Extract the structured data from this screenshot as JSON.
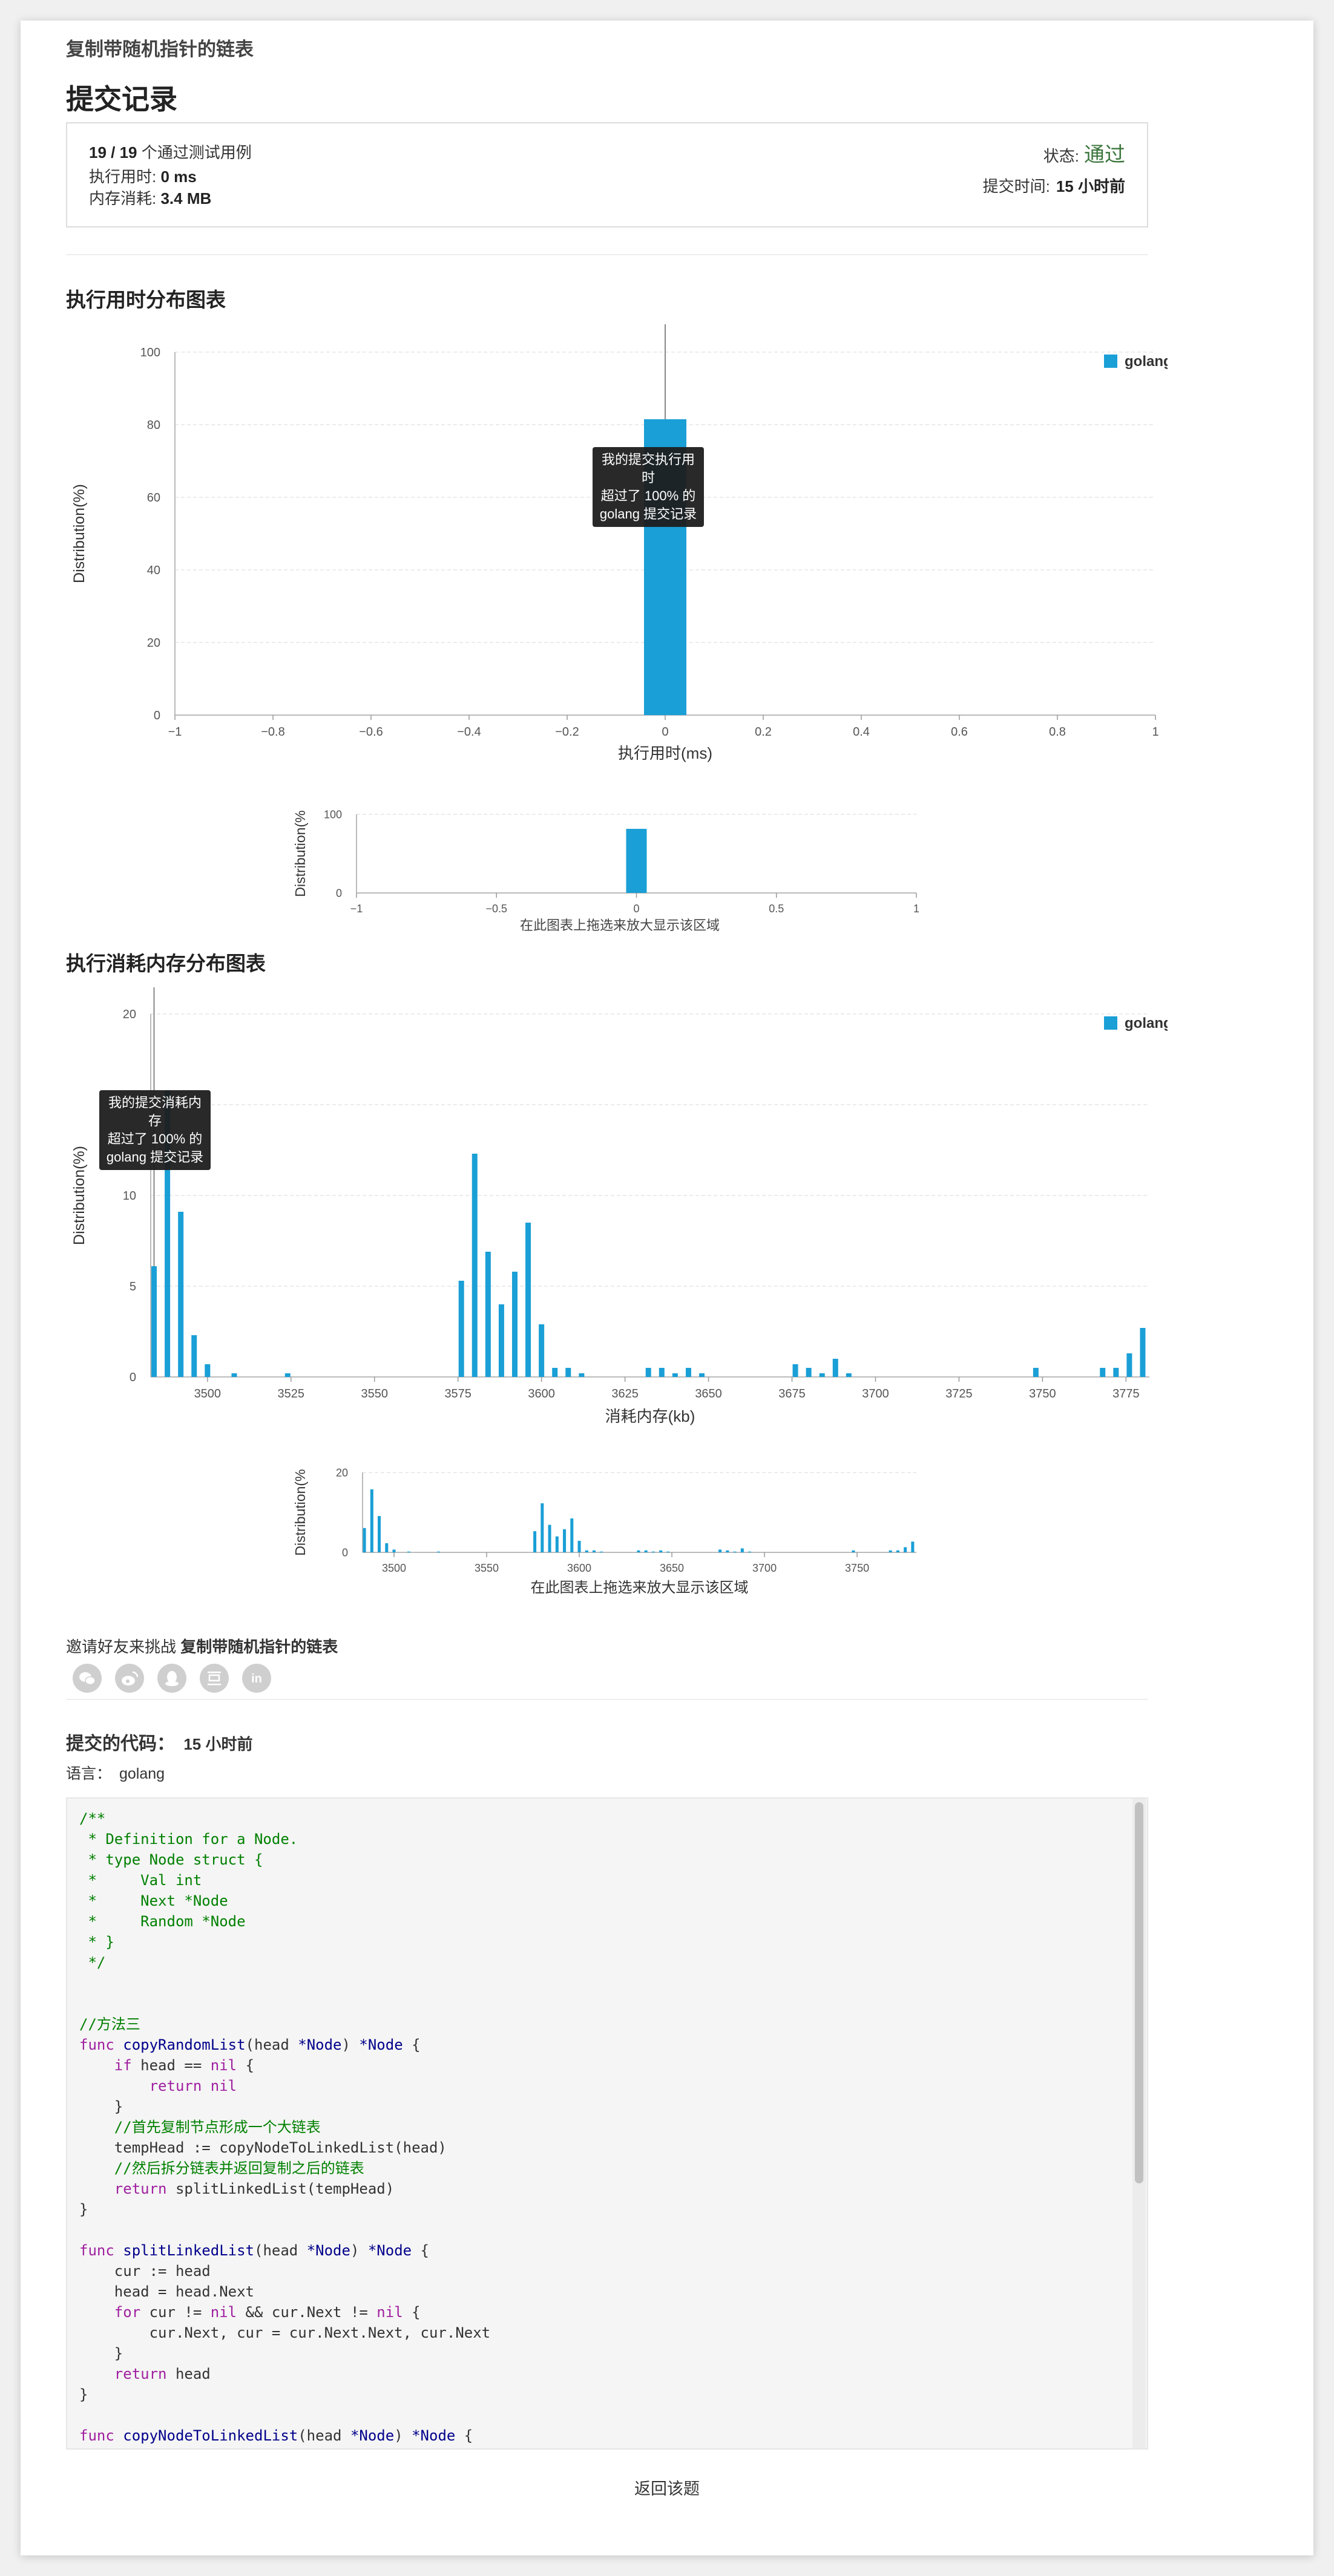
{
  "problem_title": "复制带随机指针的链表",
  "page_title": "提交记录",
  "summary": {
    "passed": "19 / 19",
    "passed_suffix": " 个通过测试用例",
    "runtime_label": "执行用时: ",
    "runtime_value": "0 ms",
    "memory_label": "内存消耗: ",
    "memory_value": "3.4 MB",
    "status_label": "状态:",
    "status_value": "通过",
    "submit_time_label": "提交时间:",
    "submit_time_value": "15 小时前"
  },
  "runtime_section": {
    "title": "执行用时分布图表",
    "tooltip": [
      "我的提交执行用时",
      "超过了 100% 的",
      "golang 提交记录"
    ],
    "brush_hint": "在此图表上拖选来放大显示该区域"
  },
  "memory_section": {
    "title": "执行消耗内存分布图表",
    "tooltip": [
      "我的提交消耗内存",
      "超过了 100% 的",
      "golang 提交记录"
    ],
    "brush_hint": "在此图表上拖选来放大显示该区域"
  },
  "chart_data": [
    {
      "type": "bar",
      "title": "执行用时分布图表",
      "xlabel": "执行用时(ms)",
      "ylabel": "Distribution(%)",
      "xlim": [
        -1,
        1
      ],
      "ylim": [
        0,
        100
      ],
      "x_ticks": [
        "−1",
        "−0.8",
        "−0.6",
        "−0.4",
        "−0.2",
        "0",
        "0.2",
        "0.4",
        "0.6",
        "0.8",
        "1"
      ],
      "y_ticks": [
        "0",
        "20",
        "40",
        "60",
        "80",
        "100"
      ],
      "legend": "top-right",
      "grid": true,
      "series": [
        {
          "name": "golang",
          "x": [
            0
          ],
          "values": [
            81.5
          ]
        }
      ],
      "marker_x": 0,
      "color": "#1a9fd6"
    },
    {
      "type": "bar",
      "title": "执行用时分布图表 (overview)",
      "xlabel": "在此图表上拖选来放大显示该区域",
      "ylabel": "Distribution(%",
      "xlim": [
        -1,
        1
      ],
      "ylim": [
        0,
        100
      ],
      "x_ticks": [
        "−1",
        "−0.5",
        "0",
        "0.5",
        "1"
      ],
      "y_ticks": [
        "0",
        "100"
      ],
      "series": [
        {
          "name": "golang",
          "x": [
            0
          ],
          "values": [
            81.5
          ]
        }
      ],
      "color": "#1a9fd6"
    },
    {
      "type": "bar",
      "title": "执行消耗内存分布图表",
      "xlabel": "消耗内存(kb)",
      "ylabel": "Distribution(%)",
      "xlim": [
        3483,
        3782
      ],
      "ylim": [
        0,
        20
      ],
      "x_ticks": [
        "3500",
        "3525",
        "3550",
        "3575",
        "3600",
        "3625",
        "3650",
        "3675",
        "3700",
        "3725",
        "3750",
        "3775"
      ],
      "x_tick_values": [
        3500,
        3525,
        3550,
        3575,
        3600,
        3625,
        3650,
        3675,
        3700,
        3725,
        3750,
        3775
      ],
      "y_ticks": [
        "0",
        "5",
        "10",
        "15",
        "20"
      ],
      "legend": "top-right",
      "grid": true,
      "series": [
        {
          "name": "golang",
          "x": [
            3484,
            3488,
            3492,
            3496,
            3500,
            3508,
            3524,
            3576,
            3580,
            3584,
            3588,
            3592,
            3596,
            3600,
            3604,
            3608,
            3612,
            3632,
            3636,
            3640,
            3644,
            3648,
            3676,
            3680,
            3684,
            3688,
            3692,
            3748,
            3768,
            3772,
            3776,
            3780
          ],
          "values": [
            6.1,
            15.8,
            9.1,
            2.3,
            0.7,
            0.2,
            0.2,
            5.3,
            12.3,
            6.9,
            4.0,
            5.8,
            8.5,
            2.9,
            0.5,
            0.5,
            0.2,
            0.5,
            0.5,
            0.2,
            0.5,
            0.2,
            0.7,
            0.5,
            0.2,
            1.0,
            0.2,
            0.5,
            0.5,
            0.5,
            1.3,
            2.7
          ]
        }
      ],
      "marker_x": 3484,
      "color": "#1a9fd6"
    },
    {
      "type": "bar",
      "title": "执行消耗内存分布图表 (overview)",
      "xlabel": "在此图表上拖选来放大显示该区域",
      "ylabel": "Distribution(%",
      "xlim": [
        3483,
        3782
      ],
      "ylim": [
        0,
        20
      ],
      "x_ticks": [
        "3500",
        "3550",
        "3600",
        "3650",
        "3700",
        "3750"
      ],
      "x_tick_values": [
        3500,
        3550,
        3600,
        3650,
        3700,
        3750
      ],
      "y_ticks": [
        "0",
        "20"
      ],
      "series": [
        {
          "name": "golang",
          "x": [
            3484,
            3488,
            3492,
            3496,
            3500,
            3508,
            3524,
            3576,
            3580,
            3584,
            3588,
            3592,
            3596,
            3600,
            3604,
            3608,
            3612,
            3632,
            3636,
            3640,
            3644,
            3648,
            3676,
            3680,
            3684,
            3688,
            3692,
            3748,
            3768,
            3772,
            3776,
            3780
          ],
          "values": [
            6.1,
            15.8,
            9.1,
            2.3,
            0.7,
            0.2,
            0.2,
            5.3,
            12.3,
            6.9,
            4.0,
            5.8,
            8.5,
            2.9,
            0.5,
            0.5,
            0.2,
            0.5,
            0.5,
            0.2,
            0.5,
            0.2,
            0.7,
            0.5,
            0.2,
            1.0,
            0.2,
            0.5,
            0.5,
            0.5,
            1.3,
            2.7
          ]
        }
      ],
      "color": "#1a9fd6"
    }
  ],
  "share": {
    "prefix": "邀请好友来挑战 ",
    "problem": "复制带随机指针的链表",
    "icons": [
      "wechat-icon",
      "weibo-icon",
      "qq-icon",
      "douban-icon",
      "linkedin-icon"
    ]
  },
  "code_section": {
    "title": "提交的代码：",
    "time": "15 小时前",
    "language_label": "语言：",
    "language": "golang",
    "lines": [
      "/**",
      " * Definition for a Node.",
      " * type Node struct {",
      " *     Val int",
      " *     Next *Node",
      " *     Random *Node",
      " * }",
      " */",
      "",
      "",
      "//方法三",
      "func copyRandomList(head *Node) *Node {",
      "    if head == nil {",
      "        return nil",
      "    }",
      "    //首先复制节点形成一个大链表",
      "    tempHead := copyNodeToLinkedList(head)",
      "    //然后拆分链表并返回复制之后的链表",
      "    return splitLinkedList(tempHead)",
      "}",
      "",
      "func splitLinkedList(head *Node) *Node {",
      "    cur := head",
      "    head = head.Next",
      "    for cur != nil && cur.Next != nil {",
      "        cur.Next, cur = cur.Next.Next, cur.Next",
      "    }",
      "    return head",
      "}",
      "",
      "func copyNodeToLinkedList(head *Node) *Node {",
      "    cur := head"
    ]
  },
  "back_link": "返回该题"
}
